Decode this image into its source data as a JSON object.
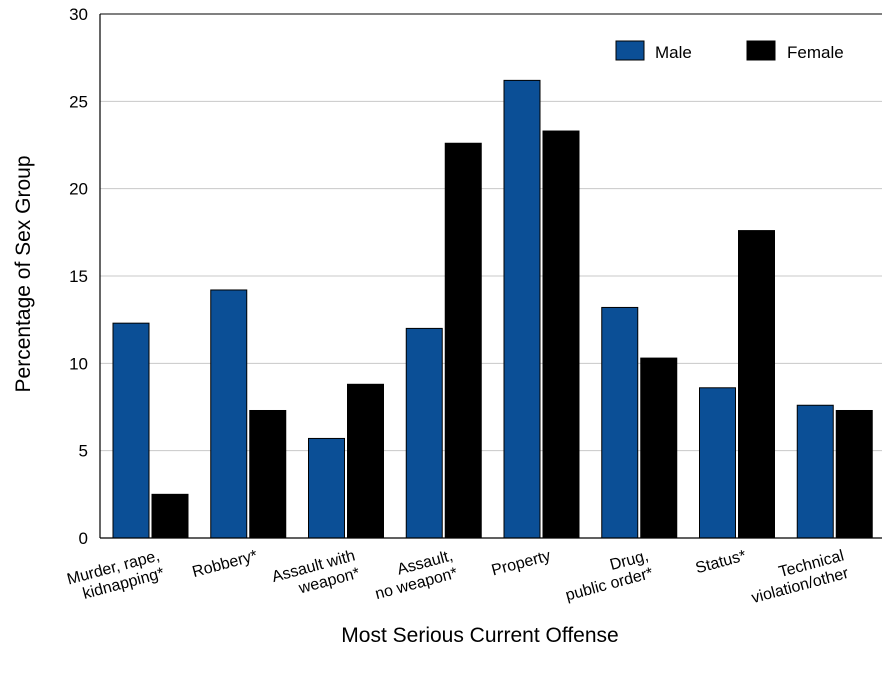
{
  "chart_data": {
    "type": "bar",
    "xlabel": "Most Serious Current Offense",
    "ylabel": "Percentage of Sex Group",
    "ylim": [
      0,
      30
    ],
    "yticks": [
      "0",
      "5",
      "10",
      "15",
      "20",
      "25",
      "30"
    ],
    "grid": true,
    "legend_position": "top-right",
    "categories": [
      [
        "Murder, rape,",
        "kidnapping*"
      ],
      [
        "Robbery*"
      ],
      [
        "Assault with",
        "weapon*"
      ],
      [
        "Assault,",
        "no weapon*"
      ],
      [
        "Property"
      ],
      [
        "Drug,",
        "public order*"
      ],
      [
        "Status*"
      ],
      [
        "Technical",
        "violation/other"
      ]
    ],
    "series": [
      {
        "name": "Male",
        "color": "#0b4f96",
        "values": [
          12.3,
          14.2,
          5.7,
          12.0,
          26.2,
          13.2,
          8.6,
          7.6
        ]
      },
      {
        "name": "Female",
        "color": "#000000",
        "values": [
          2.5,
          7.3,
          8.8,
          22.6,
          23.3,
          10.3,
          17.6,
          7.3
        ]
      }
    ]
  }
}
